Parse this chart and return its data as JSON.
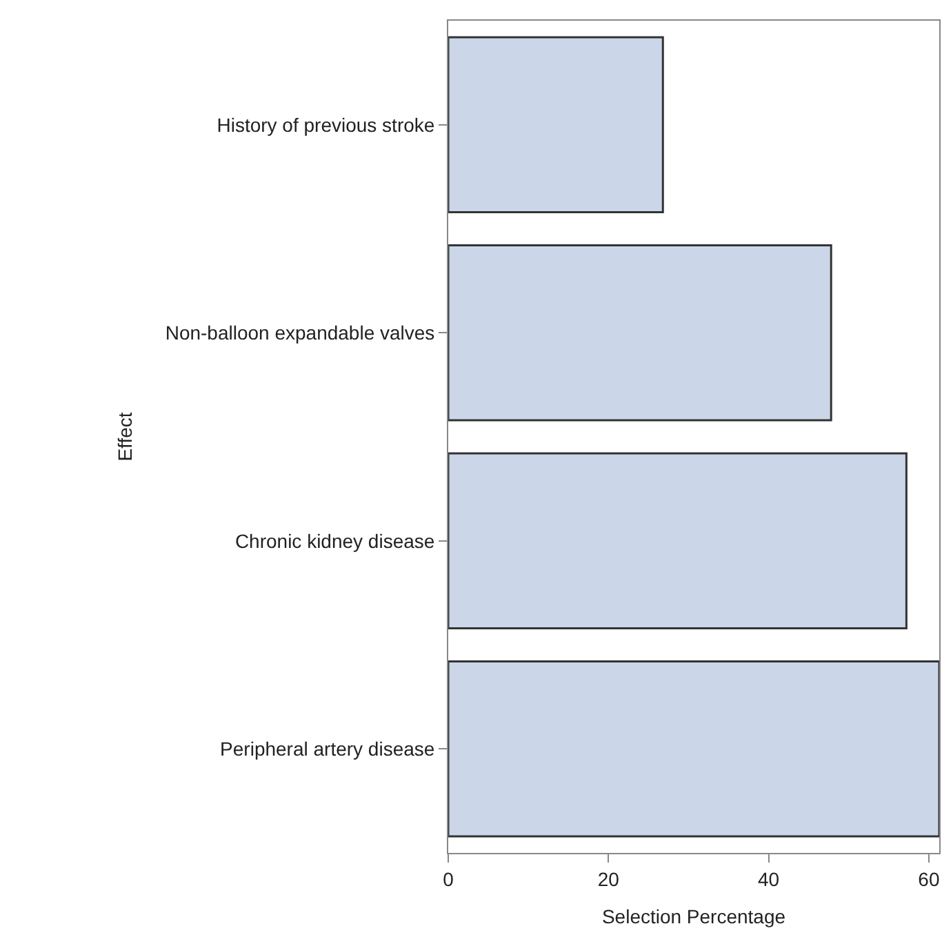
{
  "chart_data": {
    "type": "bar",
    "orientation": "horizontal",
    "categories": [
      "History of previous stroke",
      "Non-balloon expandable valves",
      "Chronic kidney disease",
      "Peripheral artery disease"
    ],
    "values": [
      26.8,
      47.8,
      57.2,
      61.3
    ],
    "color": "#cbd7e8",
    "xlim": [
      0,
      61.3
    ],
    "xticks": [
      0,
      20,
      40,
      60
    ],
    "xlabel": "Selection Percentage",
    "ylabel": "Effect",
    "legend": false
  }
}
